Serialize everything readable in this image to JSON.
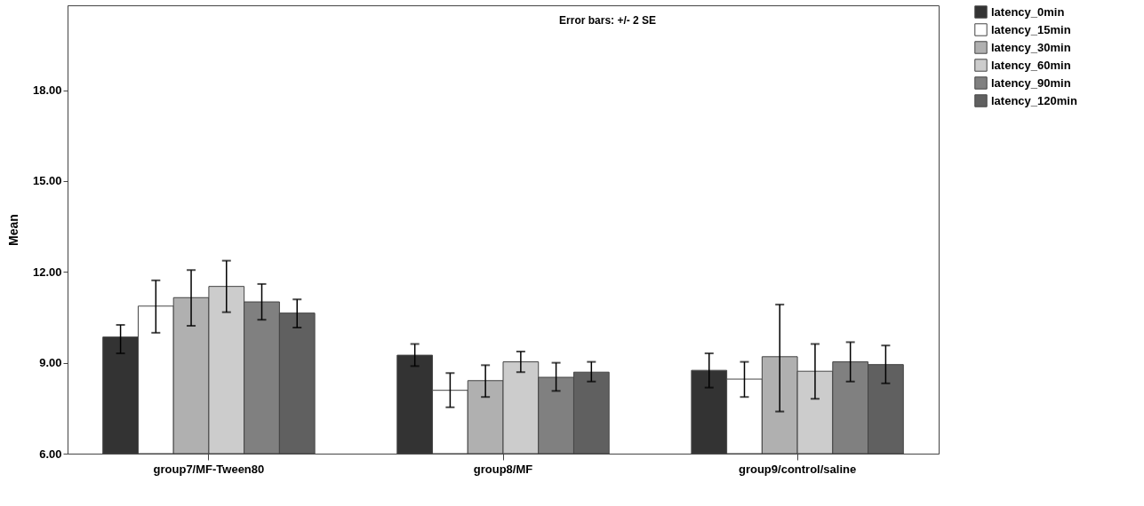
{
  "chart_data": {
    "type": "bar",
    "ylabel": "Mean",
    "annotations": [
      "Error bars: +/- 2 SE"
    ],
    "categories": [
      "group7/MF-Tween80",
      "group8/MF",
      "group9/control/saline"
    ],
    "series": [
      {
        "name": "latency_0min",
        "color": "#333333",
        "values": [
          9.85,
          9.25,
          8.75
        ],
        "errors": [
          [
            9.31,
            10.25
          ],
          [
            8.89,
            9.62
          ],
          [
            8.18,
            9.31
          ]
        ]
      },
      {
        "name": "latency_15min",
        "color": "#ffffff",
        "values": [
          10.87,
          8.09,
          8.46
        ],
        "errors": [
          [
            9.99,
            11.72
          ],
          [
            7.53,
            8.66
          ],
          [
            7.87,
            9.03
          ]
        ]
      },
      {
        "name": "latency_30min",
        "color": "#b0b0b0",
        "values": [
          11.15,
          8.41,
          9.2
        ],
        "errors": [
          [
            10.22,
            12.06
          ],
          [
            7.87,
            8.92
          ],
          [
            7.39,
            10.92
          ]
        ]
      },
      {
        "name": "latency_60min",
        "color": "#cccccc",
        "values": [
          11.52,
          9.03,
          8.72
        ],
        "errors": [
          [
            10.67,
            12.37
          ],
          [
            8.69,
            9.37
          ],
          [
            7.81,
            9.62
          ]
        ]
      },
      {
        "name": "latency_90min",
        "color": "#808080",
        "values": [
          11.01,
          8.52,
          9.03
        ],
        "errors": [
          [
            10.42,
            11.6
          ],
          [
            8.07,
            9.0
          ],
          [
            8.38,
            9.68
          ]
        ]
      },
      {
        "name": "latency_120min",
        "color": "#606060",
        "values": [
          10.64,
          8.69,
          8.94
        ],
        "errors": [
          [
            10.16,
            11.09
          ],
          [
            8.38,
            9.03
          ],
          [
            8.32,
            9.57
          ]
        ]
      }
    ],
    "ylim": [
      6,
      20.8
    ],
    "yticks": [
      {
        "value": 6,
        "label": "6.00"
      },
      {
        "value": 9,
        "label": "9.00"
      },
      {
        "value": 12,
        "label": "12.00"
      },
      {
        "value": 15,
        "label": "15.00"
      },
      {
        "value": 18,
        "label": "18.00"
      }
    ],
    "grid": false,
    "legend": "top right"
  }
}
